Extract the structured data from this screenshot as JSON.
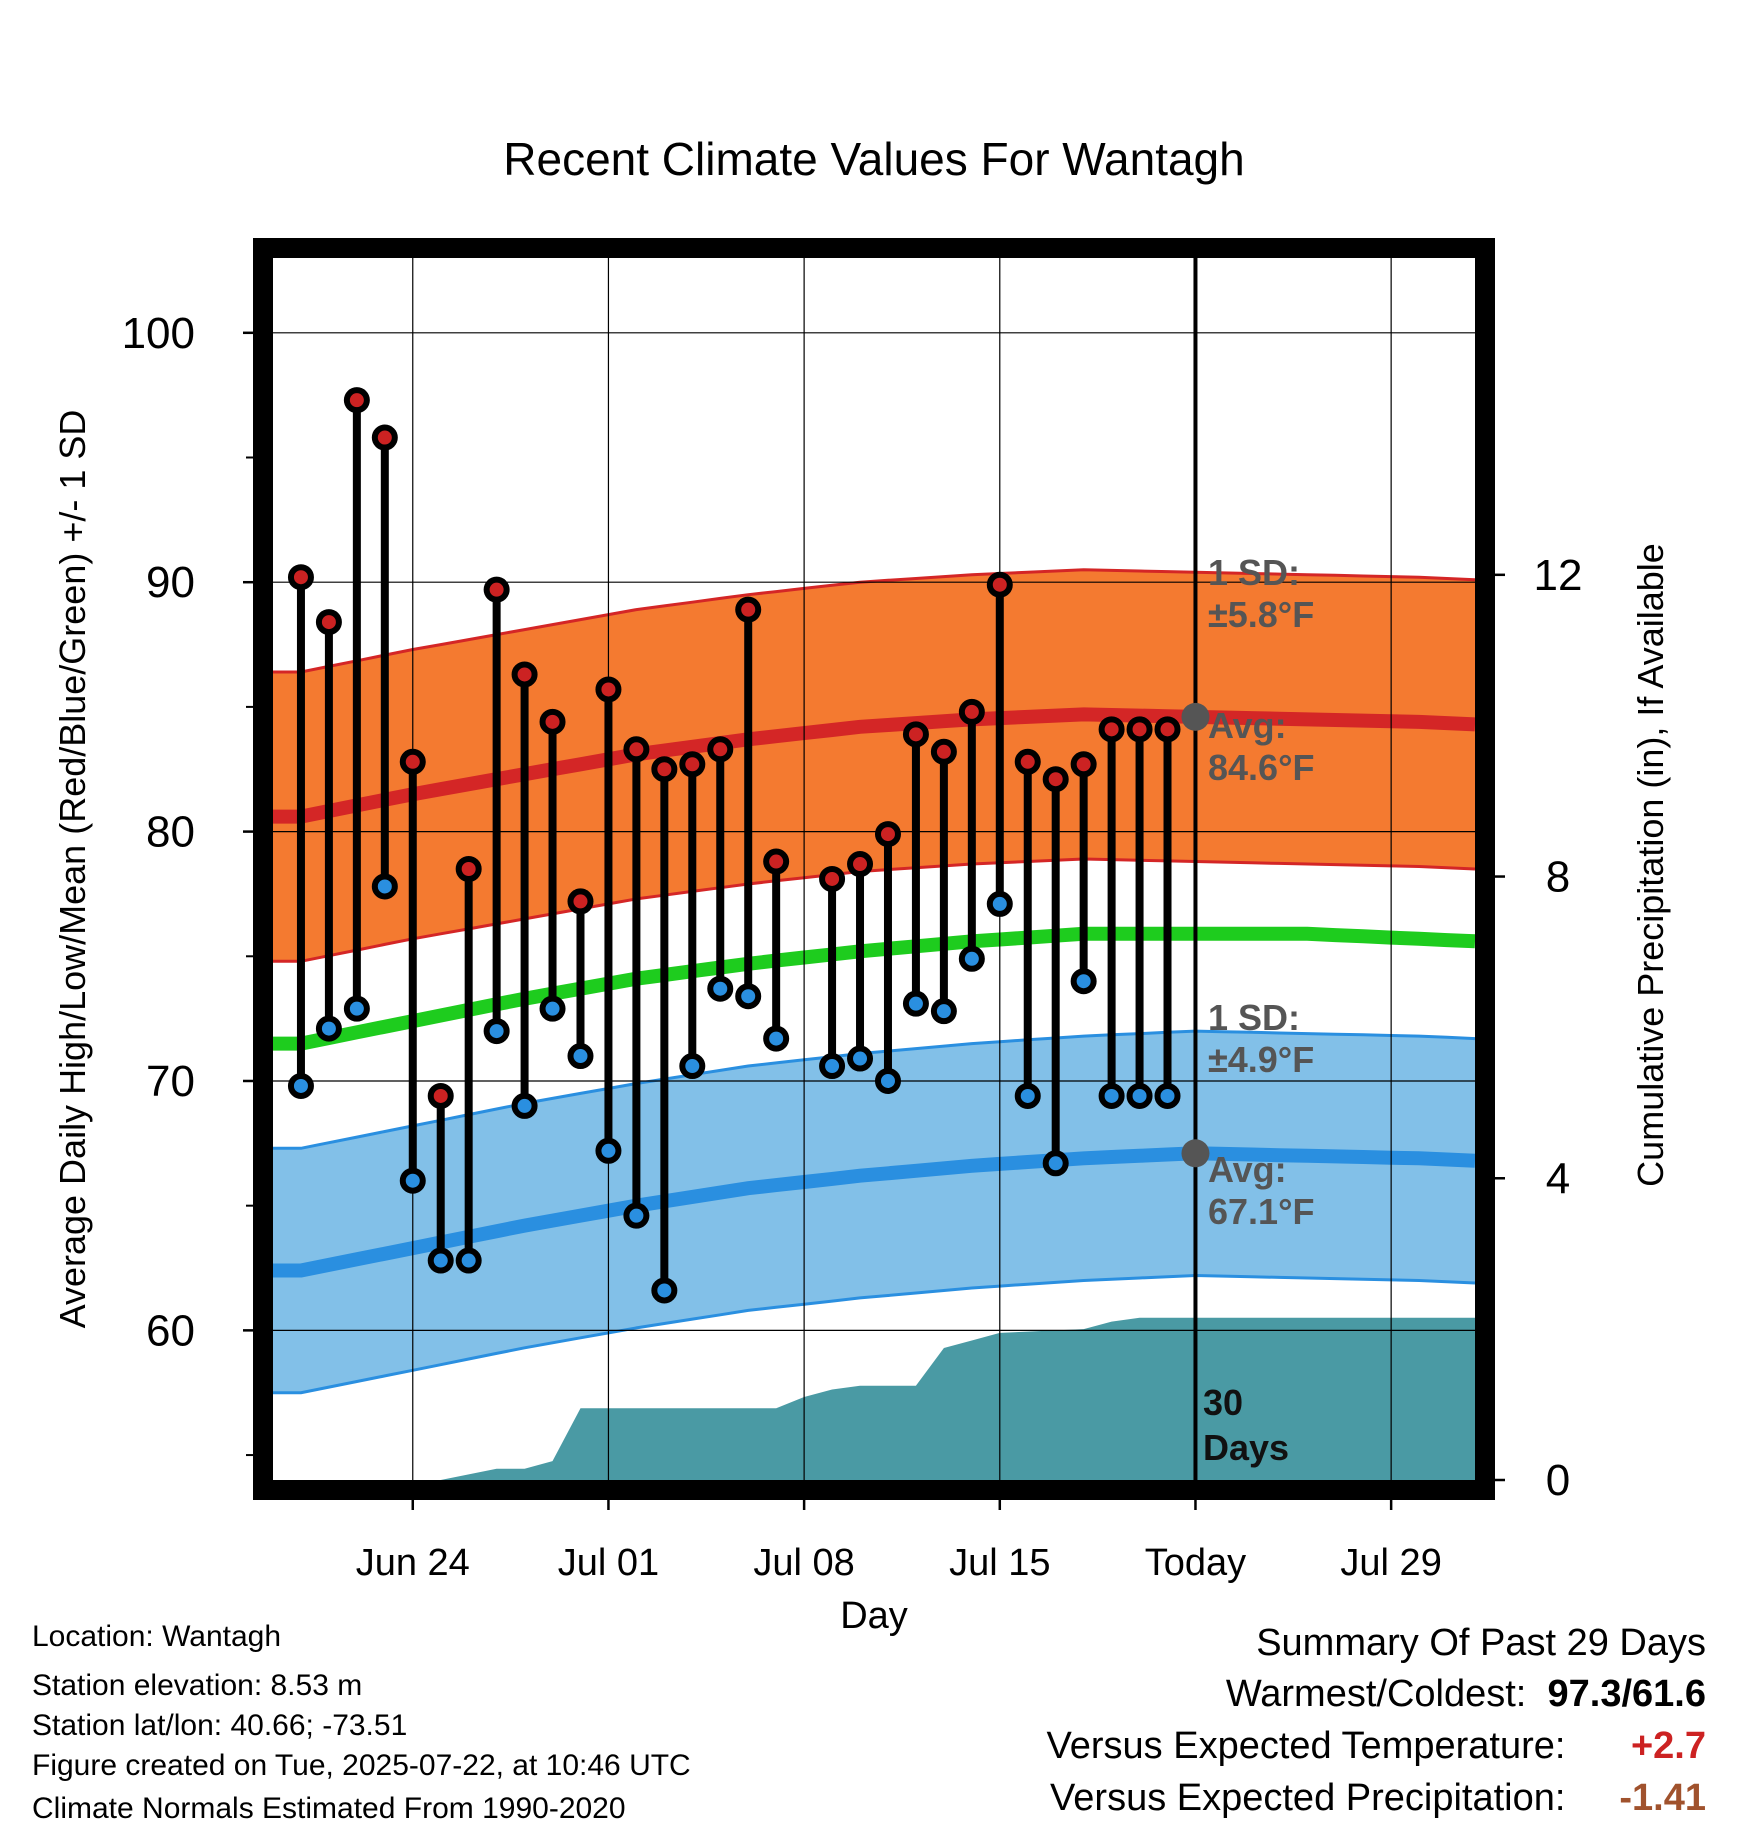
{
  "chart_data": {
    "type": "line",
    "title": "Recent Climate Values For Wantagh",
    "xlabel": "Day",
    "ylabel": "Average Daily High/Low/Mean (Red/Blue/Green) +/- 1 SD",
    "y2label": "Cumulative Precipitation (in), If Available",
    "ylim": [
      54,
      103
    ],
    "y2lim": [
      0,
      16.2
    ],
    "xlim": [
      "2025-06-19",
      "2025-08-01"
    ],
    "grid": true,
    "x_ticks": [
      {
        "date": "2025-06-24",
        "label": "Jun 24"
      },
      {
        "date": "2025-07-01",
        "label": "Jul 01"
      },
      {
        "date": "2025-07-08",
        "label": "Jul 08"
      },
      {
        "date": "2025-07-15",
        "label": "Jul 15"
      },
      {
        "date": "2025-07-22",
        "label": "Today"
      },
      {
        "date": "2025-07-29",
        "label": "Jul 29"
      }
    ],
    "y_ticks": [
      "60",
      "70",
      "80",
      "90",
      "100"
    ],
    "y2_ticks": [
      "0",
      "4",
      "8",
      "12"
    ],
    "today": "2025-07-22",
    "normals": {
      "dates": [
        "2025-06-20",
        "2025-06-24",
        "2025-06-28",
        "2025-07-02",
        "2025-07-06",
        "2025-07-10",
        "2025-07-14",
        "2025-07-18",
        "2025-07-22",
        "2025-07-26",
        "2025-07-30",
        "2025-08-01"
      ],
      "high_avg": [
        80.6,
        81.5,
        82.3,
        83.1,
        83.7,
        84.2,
        84.5,
        84.7,
        84.6,
        84.5,
        84.4,
        84.3
      ],
      "low_avg": [
        62.4,
        63.3,
        64.2,
        65.0,
        65.7,
        66.2,
        66.6,
        66.9,
        67.1,
        67.0,
        66.9,
        66.8
      ],
      "mean_avg": [
        71.5,
        72.4,
        73.3,
        74.1,
        74.7,
        75.2,
        75.6,
        75.9,
        75.9,
        75.9,
        75.7,
        75.6
      ],
      "high_sd": 5.8,
      "low_sd": 4.9
    },
    "series": [
      {
        "name": "High",
        "color": "#cc2222",
        "dates": [
          "2025-06-20",
          "2025-06-21",
          "2025-06-22",
          "2025-06-23",
          "2025-06-24",
          "2025-06-25",
          "2025-06-26",
          "2025-06-27",
          "2025-06-28",
          "2025-06-29",
          "2025-06-30",
          "2025-07-01",
          "2025-07-02",
          "2025-07-03",
          "2025-07-04",
          "2025-07-05",
          "2025-07-06",
          "2025-07-07",
          "2025-07-09",
          "2025-07-10",
          "2025-07-11",
          "2025-07-12",
          "2025-07-13",
          "2025-07-14",
          "2025-07-15",
          "2025-07-16",
          "2025-07-17",
          "2025-07-18",
          "2025-07-19",
          "2025-07-20",
          "2025-07-21"
        ],
        "values": [
          90.2,
          88.4,
          97.3,
          95.8,
          82.8,
          69.4,
          78.5,
          89.7,
          86.3,
          84.4,
          77.2,
          85.7,
          83.3,
          82.5,
          82.7,
          83.3,
          88.9,
          78.8,
          78.1,
          78.7,
          79.9,
          83.9,
          83.2,
          84.8,
          89.9,
          82.8,
          82.1,
          82.7,
          84.1,
          84.1,
          84.1
        ]
      },
      {
        "name": "Low",
        "color": "#2a8fe0",
        "dates": [
          "2025-06-20",
          "2025-06-21",
          "2025-06-22",
          "2025-06-23",
          "2025-06-24",
          "2025-06-25",
          "2025-06-26",
          "2025-06-27",
          "2025-06-28",
          "2025-06-29",
          "2025-06-30",
          "2025-07-01",
          "2025-07-02",
          "2025-07-03",
          "2025-07-04",
          "2025-07-05",
          "2025-07-06",
          "2025-07-07",
          "2025-07-09",
          "2025-07-10",
          "2025-07-11",
          "2025-07-12",
          "2025-07-13",
          "2025-07-14",
          "2025-07-15",
          "2025-07-16",
          "2025-07-17",
          "2025-07-18",
          "2025-07-19",
          "2025-07-20",
          "2025-07-21"
        ],
        "values": [
          69.8,
          72.1,
          72.9,
          77.8,
          66.0,
          62.8,
          62.8,
          72.0,
          69.0,
          72.9,
          71.0,
          67.2,
          64.6,
          61.6,
          70.6,
          73.7,
          73.4,
          71.7,
          70.6,
          70.9,
          70.0,
          73.1,
          72.8,
          74.9,
          77.1,
          69.4,
          66.7,
          74.0,
          69.4,
          69.4,
          69.4
        ]
      },
      {
        "name": "Cumulative Precipitation",
        "color": "#4a9aa4",
        "dates": [
          "2025-06-24",
          "2025-06-25",
          "2025-06-27",
          "2025-06-28",
          "2025-06-29",
          "2025-06-30",
          "2025-07-01",
          "2025-07-02",
          "2025-07-07",
          "2025-07-08",
          "2025-07-09",
          "2025-07-10",
          "2025-07-12",
          "2025-07-13",
          "2025-07-14",
          "2025-07-15",
          "2025-07-18",
          "2025-07-19",
          "2025-07-20",
          "2025-08-01"
        ],
        "values": [
          0.0,
          0.0,
          0.15,
          0.15,
          0.25,
          0.95,
          0.95,
          0.95,
          0.95,
          1.1,
          1.2,
          1.25,
          1.25,
          1.75,
          1.85,
          1.95,
          2.0,
          2.1,
          2.15,
          2.15
        ]
      }
    ],
    "annotations": {
      "high_sd_label": "1 SD:",
      "high_sd_value": "±5.8°F",
      "high_avg_label": "Avg:",
      "high_avg_value": "84.6°F",
      "low_sd_label": "1 SD:",
      "low_sd_value": "±4.9°F",
      "low_avg_label": "Avg:",
      "low_avg_value": "67.1°F",
      "precip_period_1": "30",
      "precip_period_2": "Days"
    }
  },
  "info": {
    "location": "Location: Wantagh",
    "elevation": "Station elevation: 8.53 m",
    "latlon": "Station lat/lon: 40.66; -73.51",
    "created": "Figure created on Tue, 2025-07-22, at 10:46 UTC",
    "normals": "Climate Normals Estimated From 1990-2020"
  },
  "summary": {
    "title": "Summary Of Past 29 Days",
    "warmcold_label": "Warmest/Coldest:",
    "warmest": "97.3",
    "slash": "/",
    "coldest": "61.6",
    "temp_label": "Versus Expected Temperature:",
    "temp_value": "+2.7",
    "temp_color": "#cc2222",
    "precip_label": "Versus Expected Precipitation:",
    "precip_value": "-1.41",
    "precip_color": "#a0522d"
  }
}
